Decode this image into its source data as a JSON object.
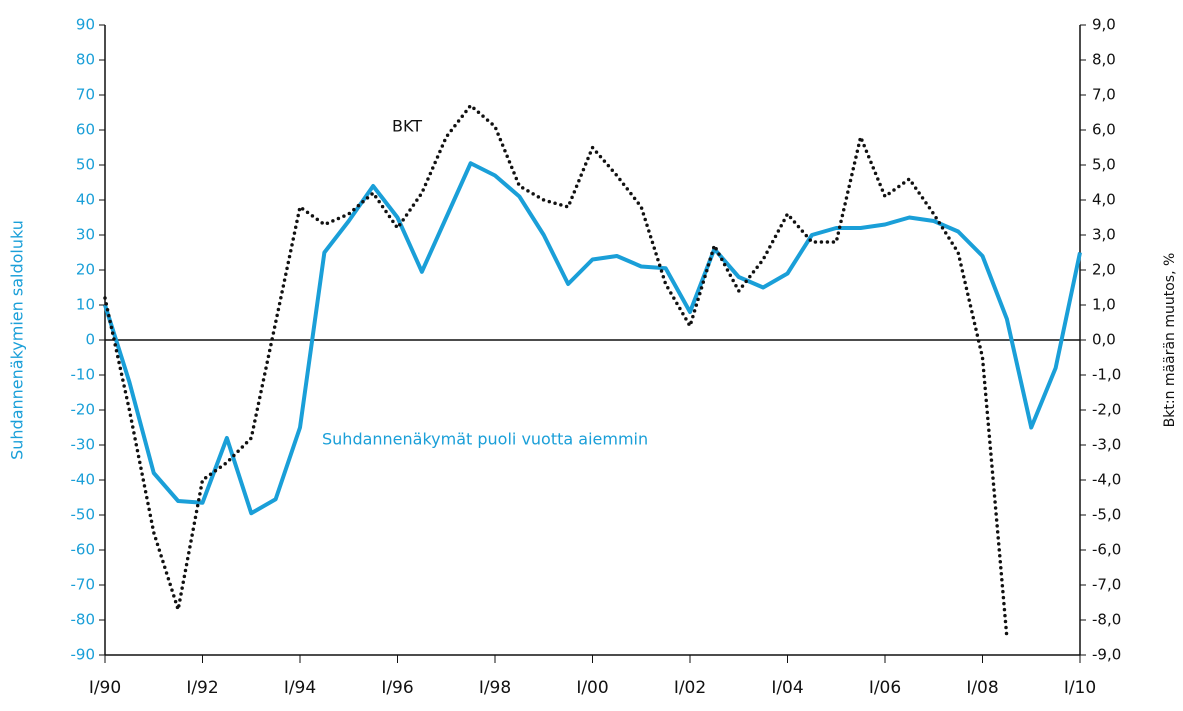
{
  "chart_data": {
    "type": "line",
    "y_label": "Suhdannenäkymien saldoluku",
    "y2_label": "Bkt:n määrän muutos, %",
    "annotations": [
      "BKT",
      "Suhdannenäkymät puoli vuotta aiemmin"
    ],
    "x": [
      1990,
      1990.5,
      1991,
      1991.5,
      1992,
      1992.5,
      1993,
      1993.5,
      1994,
      1994.5,
      1995,
      1995.5,
      1996,
      1996.5,
      1997,
      1997.5,
      1998,
      1998.5,
      1999,
      1999.5,
      2000,
      2000.5,
      2001,
      2001.5,
      2002,
      2002.5,
      2003,
      2003.5,
      2004,
      2004.5,
      2005,
      2005.5,
      2006,
      2006.5,
      2007,
      2007.5,
      2008,
      2008.5,
      2009,
      2009.5,
      2010
    ],
    "series": [
      {
        "name": "Suhdannenäkymät puoli vuotta aiemmin",
        "color": "#1a9fd8",
        "axis": "y",
        "values": [
          10,
          -12,
          -38,
          -46,
          -46.5,
          -28,
          -49.5,
          -45.5,
          -25,
          25,
          34,
          44,
          35,
          19.5,
          35,
          50.5,
          47,
          41,
          30,
          16,
          23,
          24,
          21,
          20.5,
          8,
          26,
          18,
          15,
          19,
          30,
          32,
          32,
          33,
          35,
          34,
          31,
          24,
          6,
          -25,
          -8,
          25
        ]
      },
      {
        "name": "BKT",
        "color": "#111111",
        "axis": "y2",
        "dash": "dotted",
        "values": [
          1.2,
          -2.0,
          -5.5,
          -7.7,
          -4.0,
          -3.5,
          -2.8,
          0.5,
          3.8,
          3.3,
          3.6,
          4.2,
          3.2,
          4.2,
          5.8,
          6.7,
          6.1,
          4.4,
          4.0,
          3.8,
          5.5,
          4.7,
          3.8,
          1.6,
          0.4,
          2.7,
          1.4,
          2.3,
          3.6,
          2.8,
          2.8,
          5.8,
          4.1,
          4.6,
          3.6,
          2.5,
          -0.5,
          -8.5,
          null,
          null,
          null
        ]
      }
    ],
    "xlim": [
      1990,
      2010
    ],
    "xticks": [
      {
        "value": 1990,
        "label": "I/90"
      },
      {
        "value": 1992,
        "label": "I/92"
      },
      {
        "value": 1994,
        "label": "I/94"
      },
      {
        "value": 1996,
        "label": "I/96"
      },
      {
        "value": 1998,
        "label": "I/98"
      },
      {
        "value": 2000,
        "label": "I/00"
      },
      {
        "value": 2002,
        "label": "I/02"
      },
      {
        "value": 2004,
        "label": "I/04"
      },
      {
        "value": 2006,
        "label": "I/06"
      },
      {
        "value": 2008,
        "label": "I/08"
      },
      {
        "value": 2010,
        "label": "I/10"
      }
    ],
    "ylim": [
      -90,
      90
    ],
    "yticks": [
      -90,
      -80,
      -70,
      -60,
      -50,
      -40,
      -30,
      -20,
      -10,
      0,
      10,
      20,
      30,
      40,
      50,
      60,
      70,
      80,
      90
    ],
    "y2lim": [
      -9,
      9
    ],
    "y2ticks": [
      {
        "value": -9,
        "label": "-9,0"
      },
      {
        "value": -8,
        "label": "-8,0"
      },
      {
        "value": -7,
        "label": "-7,0"
      },
      {
        "value": -6,
        "label": "-6,0"
      },
      {
        "value": -5,
        "label": "-5,0"
      },
      {
        "value": -4,
        "label": "-4,0"
      },
      {
        "value": -3,
        "label": "-3,0"
      },
      {
        "value": -2,
        "label": "-2,0"
      },
      {
        "value": -1,
        "label": "-1,0"
      },
      {
        "value": 0,
        "label": "0,0"
      },
      {
        "value": 1,
        "label": "1,0"
      },
      {
        "value": 2,
        "label": "2,0"
      },
      {
        "value": 3,
        "label": "3,0"
      },
      {
        "value": 4,
        "label": "4,0"
      },
      {
        "value": 5,
        "label": "5,0"
      },
      {
        "value": 6,
        "label": "6,0"
      },
      {
        "value": 7,
        "label": "7,0"
      },
      {
        "value": 8,
        "label": "8,0"
      },
      {
        "value": 9,
        "label": "9,0"
      }
    ],
    "y_color": "#1a9fd8",
    "zero_line": true
  }
}
